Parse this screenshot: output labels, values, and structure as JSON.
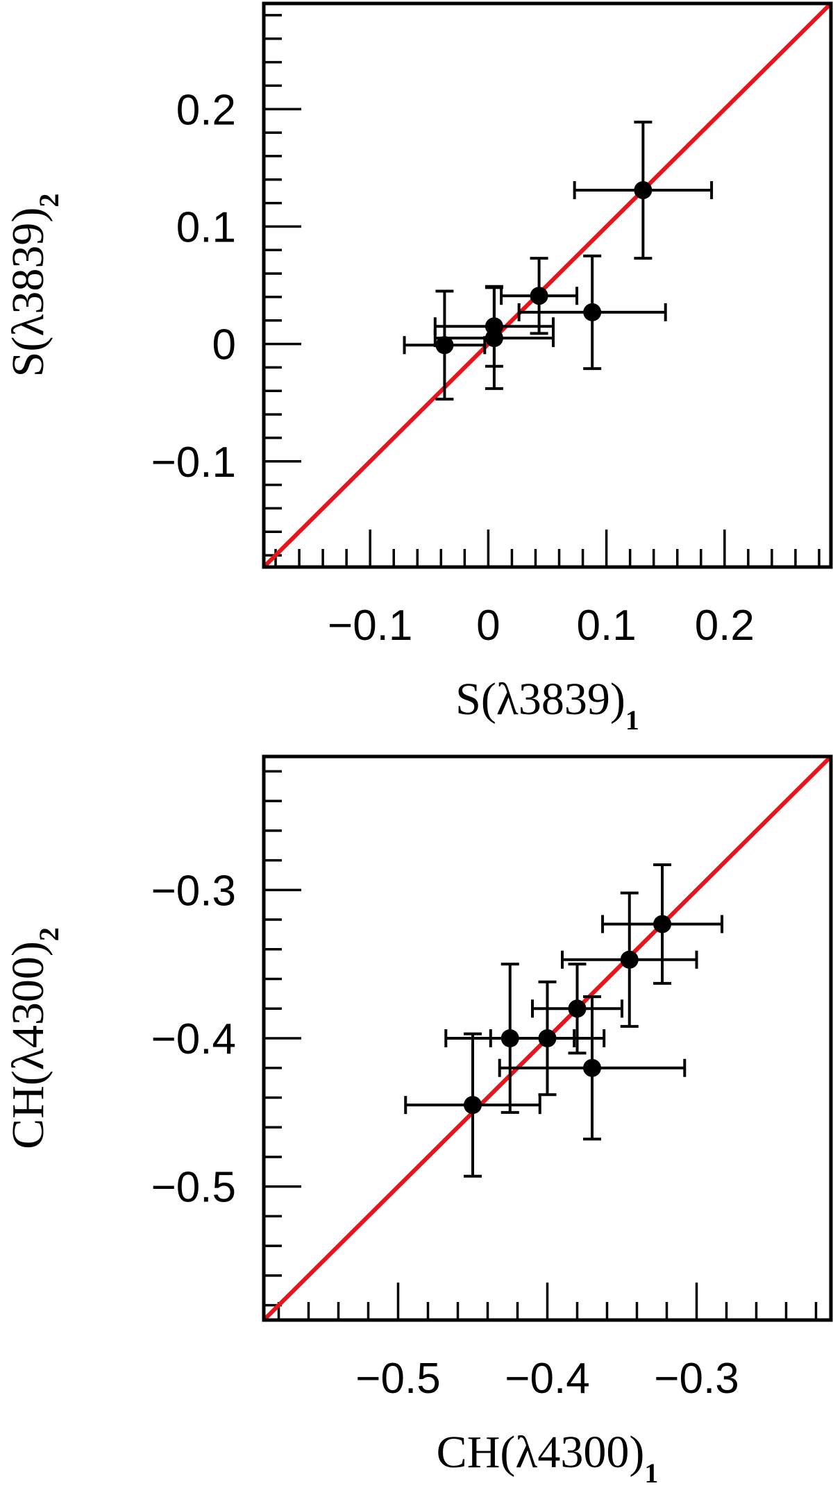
{
  "chart_data": [
    {
      "type": "scatter",
      "xlabel": "S(λ3839)",
      "xlabel_subscript": "1",
      "ylabel": "S(λ3839)",
      "ylabel_subscript": "2",
      "xlim": [
        -0.19,
        0.29
      ],
      "ylim": [
        -0.19,
        0.29
      ],
      "x_ticks": [
        -0.1,
        0,
        0.1,
        0.2
      ],
      "x_tick_labels": [
        "−0.1",
        "0",
        "0.1",
        "0.2"
      ],
      "y_ticks": [
        -0.1,
        0,
        0.1,
        0.2
      ],
      "y_tick_labels": [
        "−0.1",
        "0",
        "0.1",
        "0.2"
      ],
      "minor_tick_step": 0.02,
      "grid": false,
      "reference_line": {
        "kind": "one-to-one",
        "color": "#e8141c"
      },
      "points": [
        {
          "x": 0.131,
          "y": 0.131,
          "xerr": 0.058,
          "yerr": 0.058
        },
        {
          "x": 0.088,
          "y": 0.027,
          "xerr": 0.062,
          "yerr": 0.048
        },
        {
          "x": 0.043,
          "y": 0.041,
          "xerr": 0.032,
          "yerr": 0.032
        },
        {
          "x": 0.005,
          "y": 0.015,
          "xerr": 0.05,
          "yerr": 0.034
        },
        {
          "x": 0.005,
          "y": 0.005,
          "xerr": 0.05,
          "yerr": 0.043
        },
        {
          "x": -0.037,
          "y": -0.001,
          "xerr": 0.034,
          "yerr": 0.046
        }
      ]
    },
    {
      "type": "scatter",
      "xlabel": "CH(λ4300)",
      "xlabel_subscript": "1",
      "ylabel": "CH(λ4300)",
      "ylabel_subscript": "2",
      "xlim": [
        -0.59,
        -0.21
      ],
      "ylim": [
        -0.59,
        -0.21
      ],
      "x_ticks": [
        -0.5,
        -0.4,
        -0.3
      ],
      "x_tick_labels": [
        "−0.5",
        "−0.4",
        "−0.3"
      ],
      "y_ticks": [
        -0.5,
        -0.4,
        -0.3
      ],
      "y_tick_labels": [
        "−0.5",
        "−0.4",
        "−0.3"
      ],
      "minor_tick_step": 0.02,
      "grid": false,
      "reference_line": {
        "kind": "one-to-one",
        "color": "#e8141c"
      },
      "points": [
        {
          "x": -0.323,
          "y": -0.323,
          "xerr": 0.04,
          "yerr": 0.04
        },
        {
          "x": -0.345,
          "y": -0.347,
          "xerr": 0.045,
          "yerr": 0.045
        },
        {
          "x": -0.38,
          "y": -0.38,
          "xerr": 0.03,
          "yerr": 0.03
        },
        {
          "x": -0.37,
          "y": -0.42,
          "xerr": 0.062,
          "yerr": 0.048
        },
        {
          "x": -0.4,
          "y": -0.4,
          "xerr": 0.038,
          "yerr": 0.038
        },
        {
          "x": -0.425,
          "y": -0.4,
          "xerr": 0.043,
          "yerr": 0.05
        },
        {
          "x": -0.45,
          "y": -0.445,
          "xerr": 0.045,
          "yerr": 0.048
        }
      ]
    }
  ]
}
